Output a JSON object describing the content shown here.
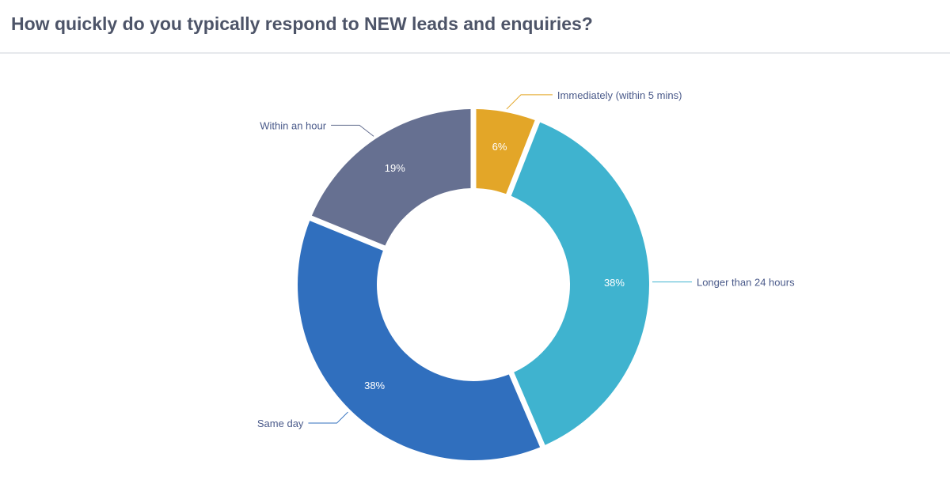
{
  "header": {
    "title": "How quickly do you typically respond to NEW leads and enquiries?"
  },
  "chart_data": {
    "type": "pie",
    "variant": "donut",
    "title": "How quickly do you typically respond to NEW leads and enquiries?",
    "categories": [
      "Immediately (within 5 mins)",
      "Longer than 24 hours",
      "Same day",
      "Within an hour"
    ],
    "values": [
      6,
      38,
      38,
      19
    ],
    "value_labels": [
      "6%",
      "38%",
      "38%",
      "19%"
    ],
    "colors": [
      "#e3a628",
      "#3fb3cf",
      "#306fbe",
      "#667091"
    ],
    "label_color": "#4a5a8a",
    "legend": "none"
  }
}
